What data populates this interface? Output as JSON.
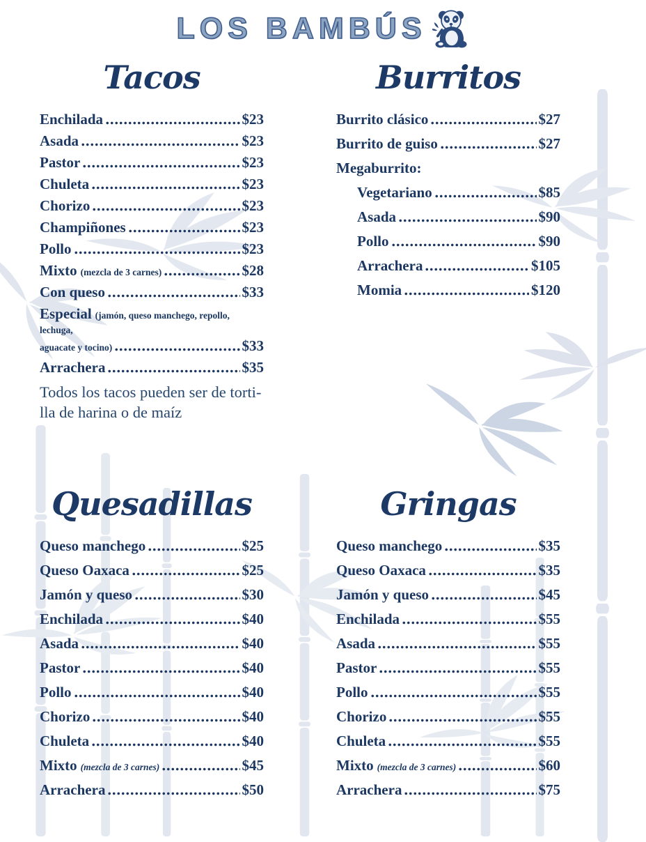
{
  "brand": {
    "logo_text": "Los Bambús"
  },
  "colors": {
    "text_navy": "#1c3862",
    "title_navy": "#1d3a66",
    "logo_blue": "#8ca3c2",
    "logo_outline": "#3f5e8c",
    "watermark_light": "#e2e6ee",
    "watermark_dark": "#ccd5e3",
    "background": "#ffffff"
  },
  "menu": {
    "sections": [
      {
        "title": "Tacos",
        "items": [
          {
            "name": "Enchilada",
            "price": "$23"
          },
          {
            "name": "Asada",
            "price": "$23"
          },
          {
            "name": "Pastor",
            "price": "$23"
          },
          {
            "name": "Chuleta",
            "price": "$23"
          },
          {
            "name": "Chorizo",
            "price": "$23"
          },
          {
            "name": "Champiñones",
            "price": "$23"
          },
          {
            "name": "Pollo",
            "price": "$23"
          },
          {
            "name": "Mixto",
            "note": "(mezcla de 3 carnes)",
            "price": "$28"
          },
          {
            "name": "Con queso",
            "price": "$33"
          },
          {
            "name": "Especial",
            "note": "(jamón, queso manchego, repollo, lechuga,",
            "note_line2": "aguacate y tocino)",
            "price": "$33"
          },
          {
            "name": "Arrachera",
            "price": "$35"
          }
        ],
        "footnote_lines": [
          "Todos los tacos pueden ser de torti-",
          "lla  de harina o de maíz"
        ]
      },
      {
        "title": "Burritos",
        "items": [
          {
            "name": "Burrito clásico",
            "price": "$27"
          },
          {
            "name": "Burrito de guiso",
            "price": "$27"
          },
          {
            "name": "Megaburrito:"
          },
          {
            "name": "Vegetariano",
            "price": "$85",
            "indent": true
          },
          {
            "name": "Asada",
            "price": "$90",
            "indent": true
          },
          {
            "name": "Pollo",
            "price": "$90",
            "indent": true
          },
          {
            "name": "Arrachera",
            "price": "$105",
            "indent": true
          },
          {
            "name": "Momia",
            "price": "$120",
            "indent": true
          }
        ]
      },
      {
        "title": "Quesadillas",
        "items": [
          {
            "name": "Queso manchego",
            "price": "$25"
          },
          {
            "name": "Queso Oaxaca",
            "price": "$25"
          },
          {
            "name": "Jamón y queso",
            "price": "$30"
          },
          {
            "name": "Enchilada",
            "price": "$40"
          },
          {
            "name": "Asada",
            "price": "$40"
          },
          {
            "name": "Pastor",
            "price": "$40"
          },
          {
            "name": "Pollo",
            "price": "$40"
          },
          {
            "name": "Chorizo",
            "price": "$40"
          },
          {
            "name": "Chuleta",
            "price": "$40"
          },
          {
            "name": "Mixto",
            "note": "(mezcla de 3 carnes)",
            "note_italic": true,
            "price": "$45"
          },
          {
            "name": "Arrachera",
            "price": "$50"
          }
        ]
      },
      {
        "title": "Gringas",
        "items": [
          {
            "name": "Queso manchego",
            "price": "$35"
          },
          {
            "name": "Queso Oaxaca",
            "price": "$35"
          },
          {
            "name": "Jamón y queso",
            "price": "$45"
          },
          {
            "name": "Enchilada",
            "price": "$55"
          },
          {
            "name": "Asada",
            "price": "$55"
          },
          {
            "name": "Pastor",
            "price": "$55"
          },
          {
            "name": "Pollo",
            "price": "$55"
          },
          {
            "name": "Chorizo",
            "price": "$55"
          },
          {
            "name": "Chuleta",
            "price": "$55"
          },
          {
            "name": "Mixto",
            "note": "(mezcla de 3 carnes)",
            "note_italic": true,
            "price": "$60"
          },
          {
            "name": "Arrachera",
            "price": "$75"
          }
        ]
      }
    ]
  }
}
